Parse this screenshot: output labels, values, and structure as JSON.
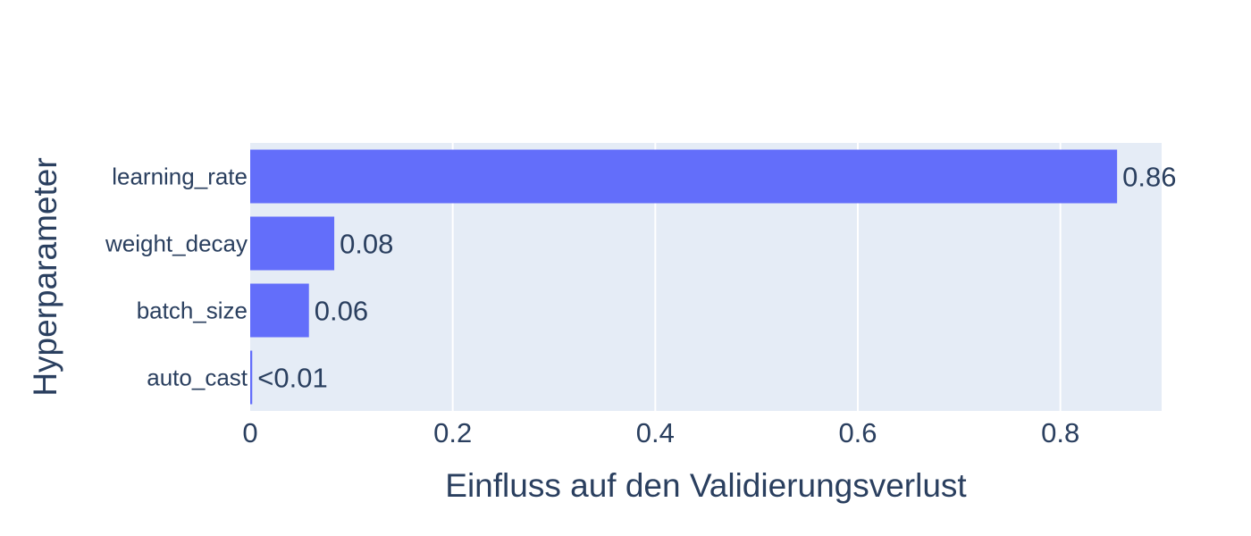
{
  "chart_data": {
    "type": "bar",
    "orientation": "horizontal",
    "categories": [
      "learning_rate",
      "weight_decay",
      "batch_size",
      "auto_cast"
    ],
    "values": [
      0.856,
      0.083,
      0.058,
      0.002
    ],
    "value_labels": [
      "0.86",
      "0.08",
      "0.06",
      "<0.01"
    ],
    "title": "",
    "xlabel": "Einfluss auf den Validierungsverlust",
    "ylabel": "Hyperparameter",
    "xlim": [
      0,
      0.9
    ],
    "xticks": [
      0,
      0.2,
      0.4,
      0.6,
      0.8
    ],
    "xtick_labels": [
      "0",
      "0.2",
      "0.4",
      "0.6",
      "0.8"
    ],
    "grid": true,
    "colors": {
      "bar": "#636efa",
      "plot_bg": "#e5ecf6",
      "grid": "#ffffff",
      "text": "#2a3f5f"
    }
  }
}
